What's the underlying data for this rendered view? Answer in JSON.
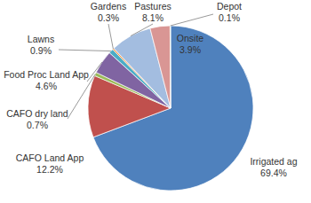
{
  "chart_data": {
    "type": "pie",
    "categories": [
      "Irrigated ag",
      "CAFO Land App",
      "CAFO dry land",
      "Food Proc Land App",
      "Lawns",
      "Gardens",
      "Pastures",
      "Onsite",
      "Depot"
    ],
    "values": [
      69.4,
      12.2,
      0.7,
      4.6,
      0.9,
      0.3,
      8.1,
      3.9,
      0.1
    ],
    "value_labels": [
      "69.4%",
      "12.2%",
      "0.7%",
      "4.6%",
      "0.9%",
      "0.3%",
      "8.1%",
      "3.9%",
      "0.1%"
    ],
    "colors": [
      "#4f81bd",
      "#c0504d",
      "#9bbb59",
      "#8064a2",
      "#4bacc6",
      "#f79646",
      "#a3bde0",
      "#d99694",
      "#c3d69b"
    ],
    "data_labels": true
  }
}
